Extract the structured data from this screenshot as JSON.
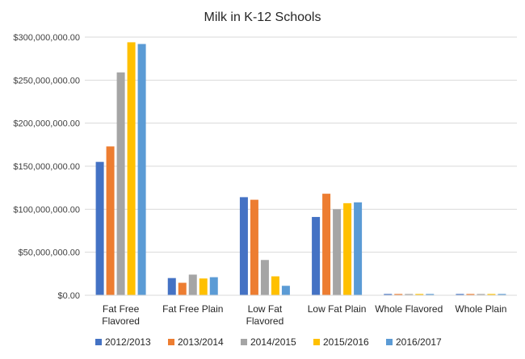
{
  "chart_data": {
    "type": "bar",
    "title": "Milk in K-12 Schools",
    "xlabel": "",
    "ylabel": "",
    "ylim": [
      0,
      300000000
    ],
    "yticks": [
      {
        "value": 0,
        "label": "$0.00"
      },
      {
        "value": 50000000,
        "label": "$50,000,000.00"
      },
      {
        "value": 100000000,
        "label": "$100,000,000.00"
      },
      {
        "value": 150000000,
        "label": "$150,000,000.00"
      },
      {
        "value": 200000000,
        "label": "$200,000,000.00"
      },
      {
        "value": 250000000,
        "label": "$250,000,000.00"
      },
      {
        "value": 300000000,
        "label": "$300,000,000.00"
      }
    ],
    "categories": [
      [
        "Fat Free",
        "Flavored"
      ],
      [
        "Fat Free Plain"
      ],
      [
        "Low Fat",
        "Flavored"
      ],
      [
        "Low Fat Plain"
      ],
      [
        "Whole Flavored"
      ],
      [
        "Whole Plain"
      ]
    ],
    "grid": true,
    "legend_position": "bottom",
    "series": [
      {
        "name": "2012/2013",
        "color": "#4472C4",
        "values": [
          155000000,
          20000000,
          114000000,
          91000000,
          1500000,
          1500000
        ]
      },
      {
        "name": "2013/2014",
        "color": "#ED7D31",
        "values": [
          173000000,
          14500000,
          111000000,
          118000000,
          1500000,
          1500000
        ]
      },
      {
        "name": "2014/2015",
        "color": "#A5A5A5",
        "values": [
          259000000,
          24000000,
          41000000,
          100000000,
          1500000,
          1500000
        ]
      },
      {
        "name": "2015/2016",
        "color": "#FFC000",
        "values": [
          294000000,
          19500000,
          22000000,
          107000000,
          1500000,
          1500000
        ]
      },
      {
        "name": "2016/2017",
        "color": "#5B9BD5",
        "values": [
          292000000,
          21000000,
          11000000,
          108000000,
          1500000,
          1500000
        ]
      }
    ]
  }
}
